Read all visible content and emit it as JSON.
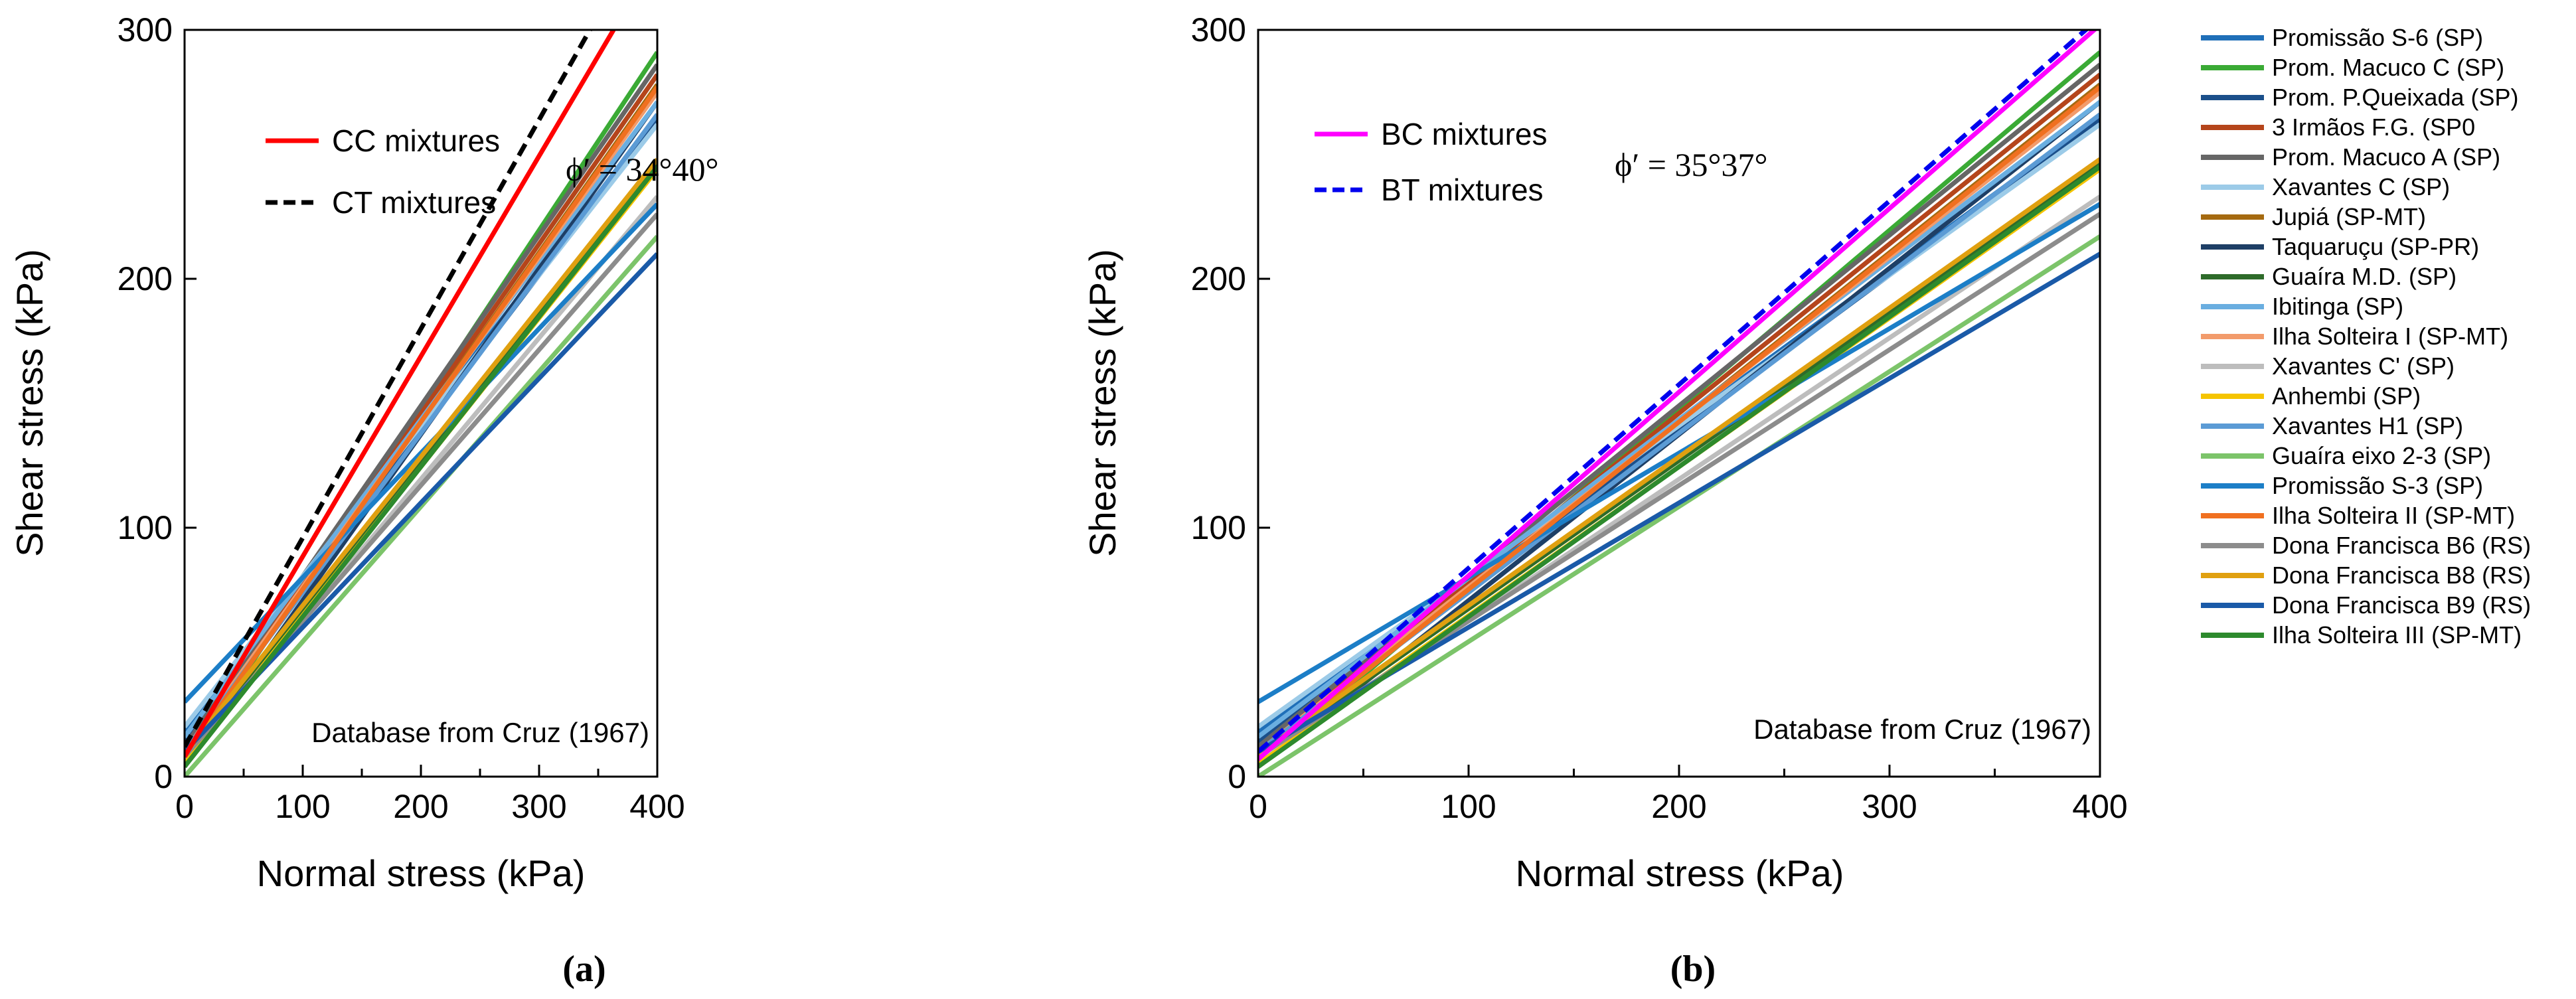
{
  "chart_data": [
    {
      "type": "line",
      "panel_label": "(a)",
      "xlabel": "Normal stress (kPa)",
      "ylabel": "Shear stress (kPa)",
      "xlim": [
        0,
        400
      ],
      "ylim": [
        0,
        300
      ],
      "xticks": [
        0,
        100,
        200,
        300,
        400
      ],
      "yticks": [
        0,
        100,
        200,
        300
      ],
      "grid": false,
      "annotation": "ϕ′ = 34°40°",
      "footnote": "Database from Cruz (1967)",
      "legend_position": "top-left",
      "series": [
        {
          "name": "CC mixtures",
          "color": "#ff0000",
          "dash": "solid",
          "x": [
            0,
            363
          ],
          "y": [
            8,
            300
          ]
        },
        {
          "name": "CT mixtures",
          "color": "#000000",
          "dash": "dashed",
          "x": [
            0,
            343
          ],
          "y": [
            12,
            300
          ]
        }
      ]
    },
    {
      "type": "line",
      "panel_label": "(b)",
      "xlabel": "Normal stress (kPa)",
      "ylabel": "Shear stress (kPa)",
      "xlim": [
        0,
        400
      ],
      "ylim": [
        0,
        300
      ],
      "xticks": [
        0,
        100,
        200,
        300,
        400
      ],
      "yticks": [
        0,
        100,
        200,
        300
      ],
      "grid": false,
      "annotation": "ϕ′ = 35°37°",
      "footnote": "Database from Cruz (1967)",
      "legend_position": "top-left",
      "series": [
        {
          "name": "BC mixtures",
          "color": "#ff00ff",
          "dash": "solid",
          "x": [
            0,
            400
          ],
          "y": [
            7,
            302
          ]
        },
        {
          "name": "BT mixtures",
          "color": "#0000ee",
          "dash": "dashed",
          "x": [
            0,
            400
          ],
          "y": [
            10,
            305
          ]
        }
      ]
    }
  ],
  "shared_series": [
    {
      "name": "Promissão S-6 (SP)",
      "color": "#1f6fb8",
      "x": [
        0,
        400
      ],
      "y": [
        18,
        265
      ]
    },
    {
      "name": "Prom. Macuco C (SP)",
      "color": "#3aaa35",
      "x": [
        0,
        400
      ],
      "y": [
        5,
        291
      ]
    },
    {
      "name": "Prom. P.Queixada (SP)",
      "color": "#1b4f8a",
      "x": [
        0,
        400
      ],
      "y": [
        14,
        264
      ]
    },
    {
      "name": "3 Irmãos F.G. (SP0",
      "color": "#b5451b",
      "x": [
        0,
        400
      ],
      "y": [
        10,
        282
      ]
    },
    {
      "name": "Prom. Macuco A (SP)",
      "color": "#666666",
      "x": [
        0,
        400
      ],
      "y": [
        12,
        286
      ]
    },
    {
      "name": "Xavantes C (SP)",
      "color": "#9ccbe8",
      "x": [
        0,
        400
      ],
      "y": [
        20,
        262
      ]
    },
    {
      "name": "Jupiá (SP-MT)",
      "color": "#a56a10",
      "x": [
        0,
        400
      ],
      "y": [
        8,
        278
      ]
    },
    {
      "name": "Taquaruçu (SP-PR)",
      "color": "#1e3f66",
      "x": [
        0,
        400
      ],
      "y": [
        4,
        271
      ]
    },
    {
      "name": "Guaíra M.D. (SP)",
      "color": "#2e6b2a",
      "x": [
        0,
        400
      ],
      "y": [
        8,
        246
      ]
    },
    {
      "name": "Ibitinga (SP)",
      "color": "#6aaee0",
      "x": [
        0,
        400
      ],
      "y": [
        16,
        271
      ]
    },
    {
      "name": "Ilha Solteira I (SP-MT)",
      "color": "#f29b6b",
      "x": [
        0,
        400
      ],
      "y": [
        10,
        275
      ]
    },
    {
      "name": "Xavantes C' (SP)",
      "color": "#bdbdbd",
      "x": [
        0,
        400
      ],
      "y": [
        6,
        233
      ]
    },
    {
      "name": "Anhembi (SP)",
      "color": "#f5c400",
      "x": [
        0,
        400
      ],
      "y": [
        5,
        244
      ]
    },
    {
      "name": "Xavantes H1 (SP)",
      "color": "#5b9bd5",
      "x": [
        0,
        400
      ],
      "y": [
        10,
        266
      ]
    },
    {
      "name": "Guaíra eixo 2-3 (SP)",
      "color": "#7cc46a",
      "x": [
        0,
        400
      ],
      "y": [
        0,
        217
      ]
    },
    {
      "name": "Promissão S-3 (SP)",
      "color": "#1c7ec7",
      "x": [
        0,
        400
      ],
      "y": [
        30,
        230
      ]
    },
    {
      "name": "Ilha Solteira II (SP-MT)",
      "color": "#f07020",
      "x": [
        0,
        400
      ],
      "y": [
        8,
        277
      ]
    },
    {
      "name": "Dona Francisca B6 (RS)",
      "color": "#8c8c8c",
      "x": [
        0,
        400
      ],
      "y": [
        8,
        226
      ]
    },
    {
      "name": "Dona Francisca B8 (RS)",
      "color": "#e0a010",
      "x": [
        0,
        400
      ],
      "y": [
        9,
        248
      ]
    },
    {
      "name": "Dona Francisca B9 (RS)",
      "color": "#1a5aa8",
      "x": [
        0,
        400
      ],
      "y": [
        10,
        210
      ]
    },
    {
      "name": "Ilha Solteira III (SP-MT)",
      "color": "#2d8a2d",
      "x": [
        0,
        400
      ],
      "y": [
        4,
        245
      ]
    }
  ]
}
